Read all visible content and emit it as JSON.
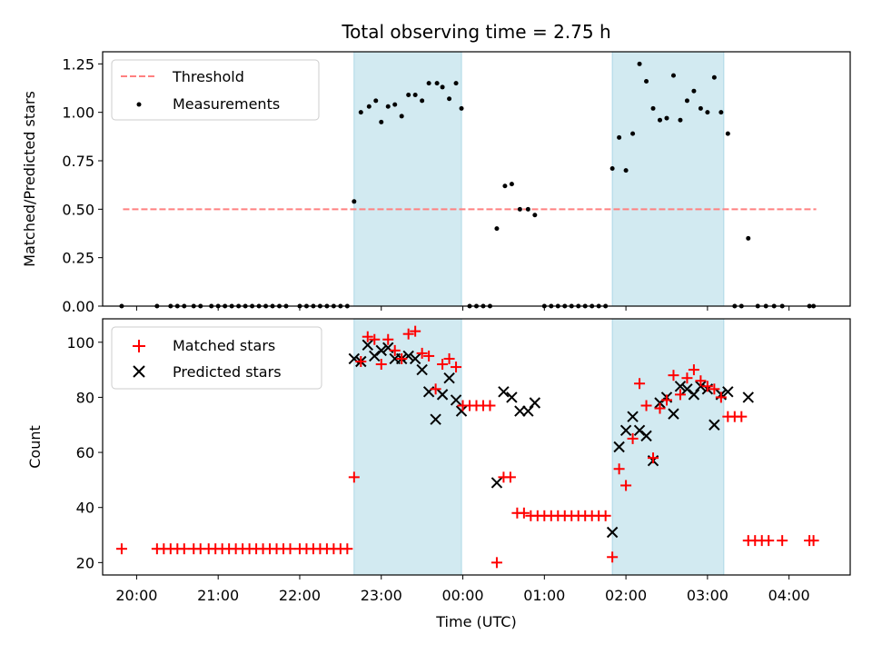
{
  "colors": {
    "threshold": "#ff8080",
    "measurement": "#000000",
    "matched": "#ff0000",
    "predicted": "#000000",
    "shade": "#add8e6"
  },
  "chart_data": [
    {
      "type": "scatter",
      "title": "Total observing time = 2.75 h",
      "ylabel": "Matched/Predicted stars",
      "xlabel": "",
      "xlim": [
        "19:35",
        "04:45"
      ],
      "ylim": [
        0,
        1.3125
      ],
      "yticks": [
        "0.00",
        "0.25",
        "0.50",
        "0.75",
        "1.00",
        "1.25"
      ],
      "legend_position": "top-left",
      "shaded_intervals": [
        [
          "22:40",
          "23:59"
        ],
        [
          "01:50",
          "03:12"
        ]
      ],
      "threshold_line": {
        "name": "Threshold",
        "y": 0.5,
        "x_range": [
          "19:50",
          "04:20"
        ],
        "style": "dashed"
      },
      "series": [
        {
          "name": "Measurements",
          "marker": "dot",
          "points": [
            [
              "19:49",
              0
            ],
            [
              "20:15",
              0
            ],
            [
              "20:25",
              0
            ],
            [
              "20:30",
              0
            ],
            [
              "20:35",
              0
            ],
            [
              "20:42",
              0
            ],
            [
              "20:47",
              0
            ],
            [
              "20:55",
              0
            ],
            [
              "21:00",
              0
            ],
            [
              "21:05",
              0
            ],
            [
              "21:10",
              0
            ],
            [
              "21:15",
              0
            ],
            [
              "21:20",
              0
            ],
            [
              "21:25",
              0
            ],
            [
              "21:30",
              0
            ],
            [
              "21:35",
              0
            ],
            [
              "21:40",
              0
            ],
            [
              "21:45",
              0
            ],
            [
              "21:50",
              0
            ],
            [
              "22:00",
              0
            ],
            [
              "22:05",
              0
            ],
            [
              "22:10",
              0
            ],
            [
              "22:15",
              0
            ],
            [
              "22:20",
              0
            ],
            [
              "22:25",
              0
            ],
            [
              "22:30",
              0
            ],
            [
              "22:35",
              0
            ],
            [
              "22:40",
              0.54
            ],
            [
              "22:45",
              1.0
            ],
            [
              "22:51",
              1.03
            ],
            [
              "22:56",
              1.06
            ],
            [
              "23:00",
              0.95
            ],
            [
              "23:05",
              1.03
            ],
            [
              "23:10",
              1.04
            ],
            [
              "23:15",
              0.98
            ],
            [
              "23:20",
              1.09
            ],
            [
              "23:25",
              1.09
            ],
            [
              "23:30",
              1.06
            ],
            [
              "23:35",
              1.15
            ],
            [
              "23:41",
              1.15
            ],
            [
              "23:45",
              1.13
            ],
            [
              "23:50",
              1.07
            ],
            [
              "23:55",
              1.15
            ],
            [
              "23:59",
              1.02
            ],
            [
              "00:05",
              0
            ],
            [
              "00:10",
              0
            ],
            [
              "00:15",
              0
            ],
            [
              "00:20",
              0
            ],
            [
              "00:25",
              0.4
            ],
            [
              "00:31",
              0.62
            ],
            [
              "00:36",
              0.63
            ],
            [
              "00:42",
              0.5
            ],
            [
              "00:48",
              0.5
            ],
            [
              "00:53",
              0.47
            ],
            [
              "01:00",
              0
            ],
            [
              "01:05",
              0
            ],
            [
              "01:10",
              0
            ],
            [
              "01:15",
              0
            ],
            [
              "01:20",
              0
            ],
            [
              "01:25",
              0
            ],
            [
              "01:30",
              0
            ],
            [
              "01:35",
              0
            ],
            [
              "01:40",
              0
            ],
            [
              "01:45",
              0
            ],
            [
              "01:50",
              0.71
            ],
            [
              "01:55",
              0.87
            ],
            [
              "02:00",
              0.7
            ],
            [
              "02:05",
              0.89
            ],
            [
              "02:10",
              1.25
            ],
            [
              "02:15",
              1.16
            ],
            [
              "02:20",
              1.02
            ],
            [
              "02:25",
              0.96
            ],
            [
              "02:30",
              0.97
            ],
            [
              "02:35",
              1.19
            ],
            [
              "02:40",
              0.96
            ],
            [
              "02:45",
              1.06
            ],
            [
              "02:50",
              1.11
            ],
            [
              "02:55",
              1.02
            ],
            [
              "03:00",
              1.0
            ],
            [
              "03:05",
              1.18
            ],
            [
              "03:10",
              1.0
            ],
            [
              "03:15",
              0.89
            ],
            [
              "03:20",
              0
            ],
            [
              "03:25",
              0
            ],
            [
              "03:30",
              0.35
            ],
            [
              "03:37",
              0
            ],
            [
              "03:43",
              0
            ],
            [
              "03:49",
              0
            ],
            [
              "03:55",
              0
            ],
            [
              "04:15",
              0
            ],
            [
              "04:18",
              0
            ]
          ]
        }
      ]
    },
    {
      "type": "scatter",
      "title": "",
      "ylabel": "Count",
      "xlabel": "Time (UTC)",
      "xlim": [
        "19:35",
        "04:45"
      ],
      "ylim": [
        15.5,
        108.5
      ],
      "yticks": [
        "20",
        "40",
        "60",
        "80",
        "100"
      ],
      "xticks": [
        "20:00",
        "21:00",
        "22:00",
        "23:00",
        "00:00",
        "01:00",
        "02:00",
        "03:00",
        "04:00"
      ],
      "legend_position": "top-left",
      "shaded_intervals": [
        [
          "22:40",
          "23:59"
        ],
        [
          "01:50",
          "03:12"
        ]
      ],
      "series": [
        {
          "name": "Matched stars",
          "marker": "plus",
          "points": [
            [
              "19:49",
              25
            ],
            [
              "20:15",
              25
            ],
            [
              "20:20",
              25
            ],
            [
              "20:25",
              25
            ],
            [
              "20:30",
              25
            ],
            [
              "20:35",
              25
            ],
            [
              "20:42",
              25
            ],
            [
              "20:47",
              25
            ],
            [
              "20:53",
              25
            ],
            [
              "20:58",
              25
            ],
            [
              "21:03",
              25
            ],
            [
              "21:08",
              25
            ],
            [
              "21:13",
              25
            ],
            [
              "21:18",
              25
            ],
            [
              "21:23",
              25
            ],
            [
              "21:28",
              25
            ],
            [
              "21:33",
              25
            ],
            [
              "21:38",
              25
            ],
            [
              "21:43",
              25
            ],
            [
              "21:48",
              25
            ],
            [
              "21:53",
              25
            ],
            [
              "22:00",
              25
            ],
            [
              "22:05",
              25
            ],
            [
              "22:10",
              25
            ],
            [
              "22:15",
              25
            ],
            [
              "22:20",
              25
            ],
            [
              "22:25",
              25
            ],
            [
              "22:30",
              25
            ],
            [
              "22:35",
              25
            ],
            [
              "22:40",
              51
            ],
            [
              "22:45",
              93
            ],
            [
              "22:50",
              102
            ],
            [
              "22:55",
              101
            ],
            [
              "23:00",
              92
            ],
            [
              "23:05",
              101
            ],
            [
              "23:10",
              97
            ],
            [
              "23:15",
              94
            ],
            [
              "23:20",
              103
            ],
            [
              "23:25",
              104
            ],
            [
              "23:30",
              96
            ],
            [
              "23:35",
              95
            ],
            [
              "23:40",
              83
            ],
            [
              "23:45",
              92
            ],
            [
              "23:50",
              94
            ],
            [
              "23:55",
              91
            ],
            [
              "00:00",
              77
            ],
            [
              "00:05",
              77
            ],
            [
              "00:10",
              77
            ],
            [
              "00:15",
              77
            ],
            [
              "00:20",
              77
            ],
            [
              "00:25",
              20
            ],
            [
              "00:30",
              51
            ],
            [
              "00:35",
              51
            ],
            [
              "00:40",
              38
            ],
            [
              "00:45",
              38
            ],
            [
              "00:50",
              37
            ],
            [
              "00:55",
              37
            ],
            [
              "01:00",
              37
            ],
            [
              "01:05",
              37
            ],
            [
              "01:10",
              37
            ],
            [
              "01:15",
              37
            ],
            [
              "01:20",
              37
            ],
            [
              "01:25",
              37
            ],
            [
              "01:30",
              37
            ],
            [
              "01:35",
              37
            ],
            [
              "01:40",
              37
            ],
            [
              "01:45",
              37
            ],
            [
              "01:50",
              22
            ],
            [
              "01:55",
              54
            ],
            [
              "02:00",
              48
            ],
            [
              "02:05",
              65
            ],
            [
              "02:10",
              85
            ],
            [
              "02:15",
              77
            ],
            [
              "02:20",
              58
            ],
            [
              "02:25",
              76
            ],
            [
              "02:30",
              79
            ],
            [
              "02:35",
              88
            ],
            [
              "02:40",
              81
            ],
            [
              "02:45",
              87
            ],
            [
              "02:50",
              90
            ],
            [
              "02:55",
              86
            ],
            [
              "03:00",
              84
            ],
            [
              "03:05",
              83
            ],
            [
              "03:10",
              80
            ],
            [
              "03:15",
              73
            ],
            [
              "03:20",
              73
            ],
            [
              "03:25",
              73
            ],
            [
              "03:30",
              28
            ],
            [
              "03:35",
              28
            ],
            [
              "03:40",
              28
            ],
            [
              "03:45",
              28
            ],
            [
              "03:55",
              28
            ],
            [
              "04:15",
              28
            ],
            [
              "04:18",
              28
            ]
          ]
        },
        {
          "name": "Predicted stars",
          "marker": "x",
          "points": [
            [
              "22:40",
              94
            ],
            [
              "22:45",
              93
            ],
            [
              "22:50",
              99
            ],
            [
              "22:55",
              95
            ],
            [
              "23:00",
              97
            ],
            [
              "23:05",
              98
            ],
            [
              "23:10",
              94
            ],
            [
              "23:15",
              94
            ],
            [
              "23:20",
              95
            ],
            [
              "23:25",
              94
            ],
            [
              "23:30",
              90
            ],
            [
              "23:35",
              82
            ],
            [
              "23:40",
              72
            ],
            [
              "23:45",
              81
            ],
            [
              "23:50",
              87
            ],
            [
              "23:55",
              79
            ],
            [
              "23:59",
              75
            ],
            [
              "00:25",
              49
            ],
            [
              "00:30",
              82
            ],
            [
              "00:36",
              80
            ],
            [
              "00:42",
              75
            ],
            [
              "00:48",
              75
            ],
            [
              "00:53",
              78
            ],
            [
              "01:50",
              31
            ],
            [
              "01:55",
              62
            ],
            [
              "02:00",
              68
            ],
            [
              "02:05",
              73
            ],
            [
              "02:10",
              68
            ],
            [
              "02:15",
              66
            ],
            [
              "02:20",
              57
            ],
            [
              "02:25",
              78
            ],
            [
              "02:30",
              80
            ],
            [
              "02:35",
              74
            ],
            [
              "02:40",
              84
            ],
            [
              "02:45",
              83
            ],
            [
              "02:50",
              81
            ],
            [
              "02:55",
              84
            ],
            [
              "03:00",
              83
            ],
            [
              "03:05",
              70
            ],
            [
              "03:10",
              81
            ],
            [
              "03:15",
              82
            ],
            [
              "03:30",
              80
            ]
          ]
        }
      ]
    }
  ]
}
